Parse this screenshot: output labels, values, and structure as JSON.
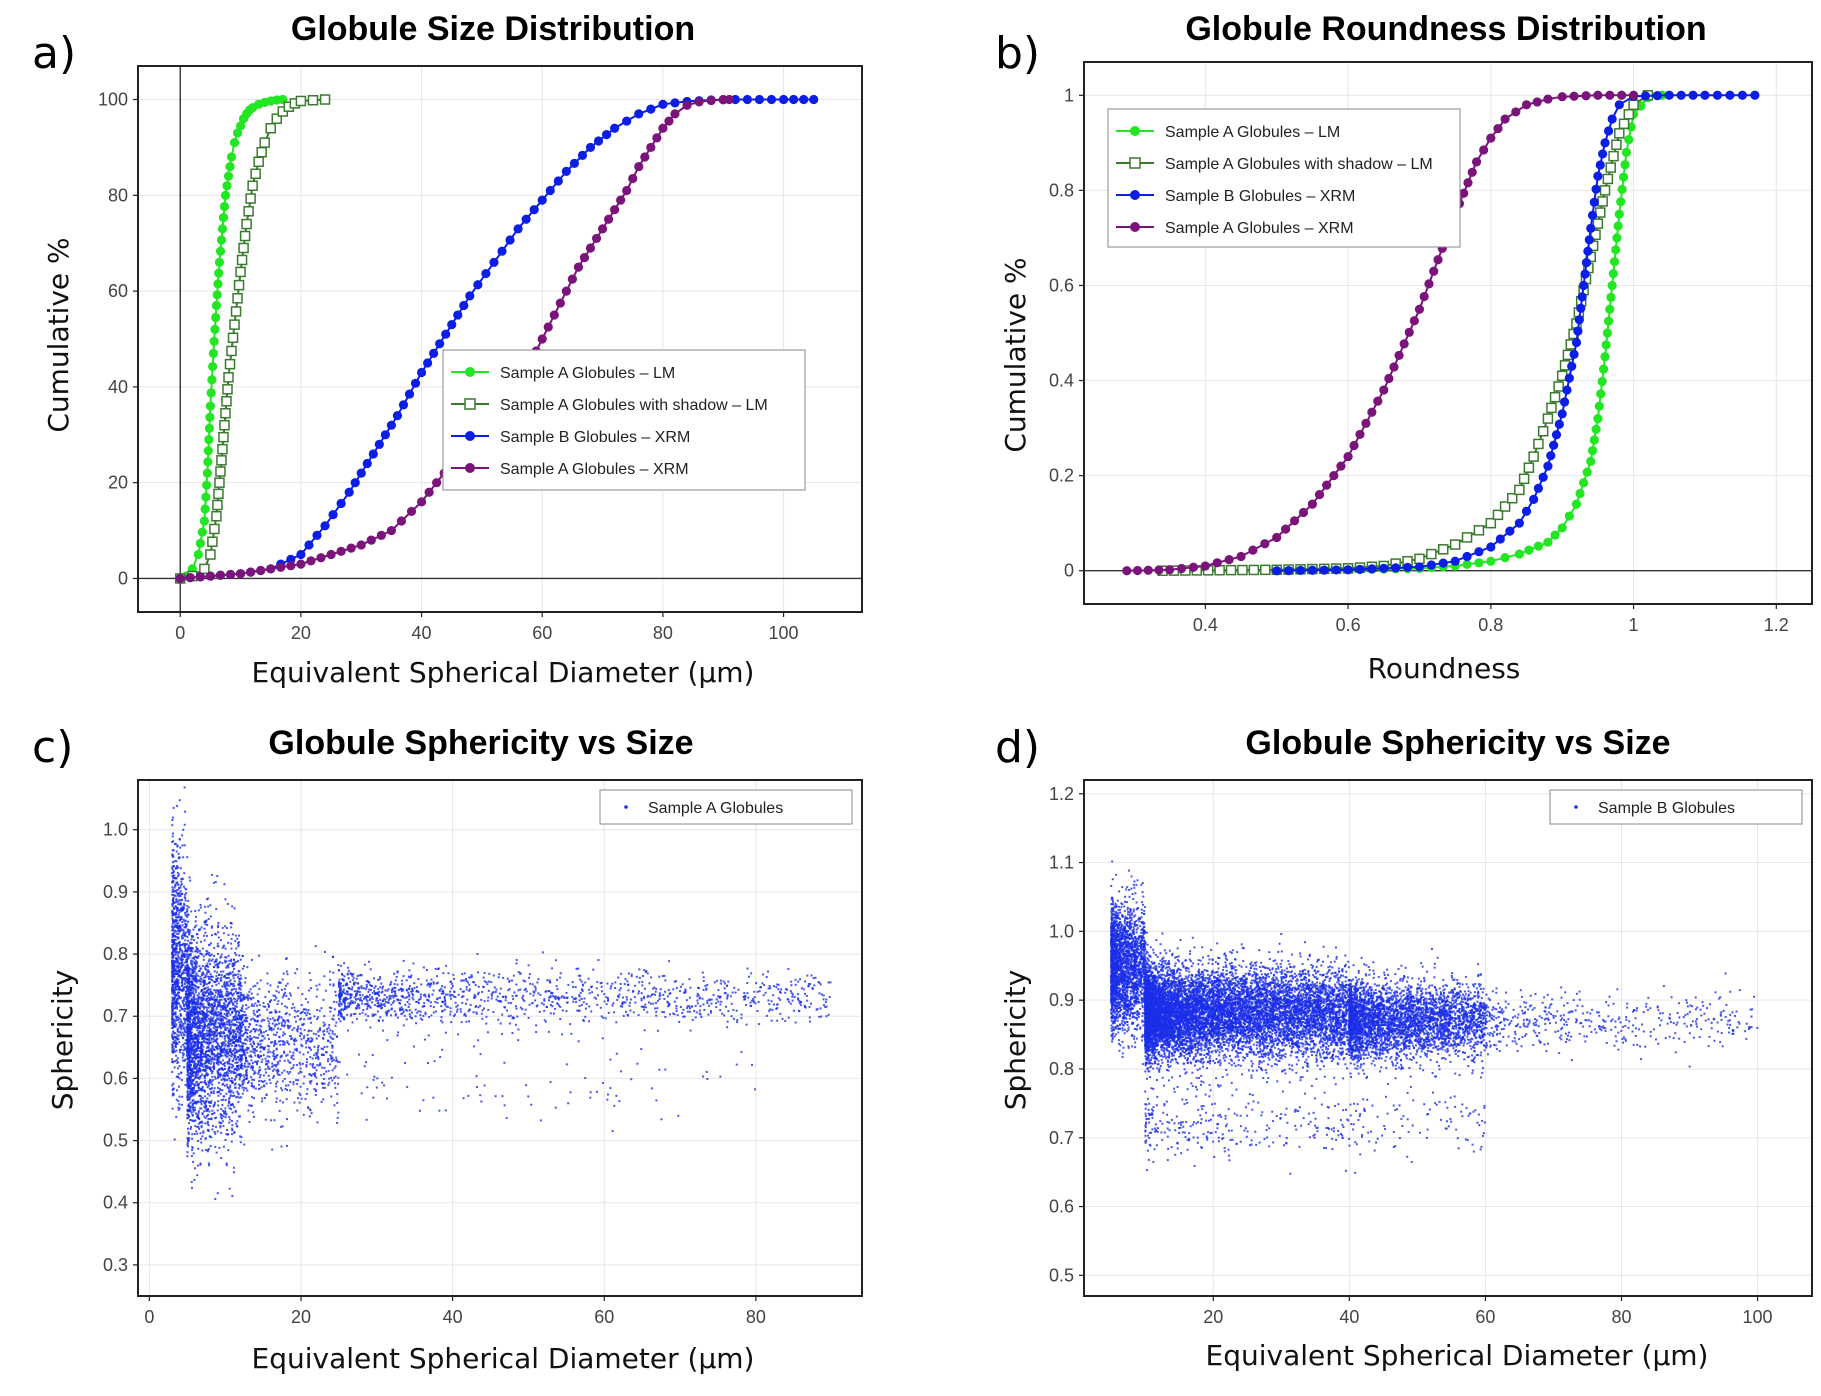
{
  "figure": {
    "panels": [
      {
        "label": "a)",
        "title": "Globule Size Distribution"
      },
      {
        "label": "b)",
        "title": "Globule Roundness Distribution"
      },
      {
        "label": "c)",
        "title": "Globule Sphericity vs Size"
      },
      {
        "label": "d)",
        "title": "Globule Sphericity vs Size"
      }
    ]
  },
  "colors": {
    "bright_green": "#22e622",
    "dark_green": "#3a7a2e",
    "blue": "#0a1ee6",
    "purple": "#7a137a",
    "scatter_blue": "#1a2ee8",
    "grid": "#e6e6e6"
  },
  "chart_data": [
    {
      "type": "line",
      "title": "Globule Size Distribution",
      "xlabel": "Equivalent Spherical Diameter (μm)",
      "ylabel": "Cumulative %",
      "xlim": [
        -7,
        113
      ],
      "ylim": [
        -7,
        107
      ],
      "xticks": [
        0,
        20,
        40,
        60,
        80,
        100
      ],
      "yticks": [
        0,
        20,
        40,
        60,
        80,
        100
      ],
      "grid": true,
      "legend_position": "center-right",
      "series": [
        {
          "name": "Sample A Globules – LM",
          "marker": "filled-circle",
          "color": "#22e622",
          "x": [
            0,
            1,
            2,
            3,
            4,
            4.5,
            5,
            5.5,
            6,
            6.5,
            7,
            7.5,
            8,
            8.5,
            9,
            9.5,
            10,
            10.5,
            11,
            11.5,
            12,
            13,
            14,
            15,
            16,
            17
          ],
          "y": [
            0,
            0.5,
            2,
            5,
            12,
            22,
            36,
            47,
            57,
            66,
            73,
            80,
            84,
            88,
            91,
            93,
            94.5,
            96,
            97,
            97.8,
            98.3,
            99,
            99.4,
            99.7,
            99.9,
            100
          ]
        },
        {
          "name": "Sample A Globules with shadow – LM",
          "marker": "open-square",
          "color": "#3a7a2e",
          "x": [
            0,
            2,
            4,
            5,
            6,
            7,
            8,
            9,
            10,
            11,
            12,
            13,
            14,
            15,
            16,
            17,
            18,
            19,
            20,
            24
          ],
          "y": [
            0,
            0.5,
            2,
            5,
            13,
            27,
            42,
            53,
            64,
            74,
            82,
            87,
            91,
            94,
            96,
            97.5,
            98.5,
            99.2,
            99.7,
            100
          ]
        },
        {
          "name": "Sample B Globules – XRM",
          "marker": "filled-circle",
          "color": "#0a1ee6",
          "x": [
            0,
            5,
            10,
            15,
            20,
            24,
            28,
            32,
            36,
            40,
            44,
            48,
            52,
            56,
            60,
            64,
            68,
            72,
            76,
            80,
            84,
            88,
            92,
            96,
            100,
            105
          ],
          "y": [
            0,
            0.5,
            1,
            2,
            5,
            11,
            18,
            26,
            34,
            43,
            51,
            59,
            66,
            73,
            79,
            85,
            90,
            94,
            97,
            99,
            99.6,
            99.9,
            100,
            100,
            100,
            100
          ]
        },
        {
          "name": "Sample A Globules – XRM",
          "marker": "filled-circle",
          "color": "#7a137a",
          "x": [
            0,
            5,
            10,
            15,
            20,
            25,
            30,
            35,
            40,
            45,
            50,
            55,
            58,
            60,
            62,
            64,
            66,
            68,
            70,
            72,
            74,
            76,
            78,
            80,
            82,
            84,
            86,
            88,
            90,
            91
          ],
          "y": [
            0,
            0.5,
            1,
            2,
            3,
            5,
            7,
            10,
            16,
            24,
            32,
            41,
            45,
            50,
            55,
            60,
            65,
            69,
            73,
            77,
            81,
            86,
            90,
            94,
            97,
            98.8,
            99.5,
            99.8,
            100,
            100
          ]
        }
      ]
    },
    {
      "type": "line",
      "title": "Globule Roundness Distribution",
      "xlabel": "Roundness",
      "ylabel": "Cumulative %",
      "xlim": [
        0.23,
        1.25
      ],
      "ylim": [
        -0.07,
        1.07
      ],
      "xticks": [
        0.4,
        0.6,
        0.8,
        1,
        1.2
      ],
      "yticks": [
        0,
        0.2,
        0.4,
        0.6,
        0.8,
        1
      ],
      "grid": true,
      "legend_position": "top-left",
      "series": [
        {
          "name": "Sample A Globules – LM",
          "marker": "filled-circle",
          "color": "#22e622",
          "x": [
            0.5,
            0.6,
            0.7,
            0.75,
            0.8,
            0.84,
            0.88,
            0.9,
            0.92,
            0.94,
            0.95,
            0.96,
            0.97,
            0.98,
            0.99,
            1.0,
            1.02,
            1.04
          ],
          "y": [
            0,
            0.002,
            0.005,
            0.01,
            0.02,
            0.035,
            0.06,
            0.09,
            0.14,
            0.23,
            0.32,
            0.45,
            0.6,
            0.75,
            0.88,
            0.96,
            0.995,
            1.0
          ]
        },
        {
          "name": "Sample A Globules with shadow – LM",
          "marker": "open-square",
          "color": "#3a7a2e",
          "x": [
            0.34,
            0.5,
            0.6,
            0.65,
            0.7,
            0.75,
            0.8,
            0.84,
            0.86,
            0.88,
            0.9,
            0.92,
            0.94,
            0.96,
            0.98,
            1.0,
            1.02
          ],
          "y": [
            0,
            0.002,
            0.005,
            0.01,
            0.025,
            0.055,
            0.1,
            0.17,
            0.24,
            0.32,
            0.41,
            0.52,
            0.66,
            0.8,
            0.92,
            0.98,
            1.0
          ]
        },
        {
          "name": "Sample B Globules – XRM",
          "marker": "filled-circle",
          "color": "#0a1ee6",
          "x": [
            0.5,
            0.6,
            0.7,
            0.75,
            0.8,
            0.84,
            0.86,
            0.88,
            0.9,
            0.92,
            0.93,
            0.94,
            0.95,
            0.96,
            0.97,
            0.98,
            1.0,
            1.05,
            1.1,
            1.17
          ],
          "y": [
            0,
            0.002,
            0.008,
            0.02,
            0.05,
            0.1,
            0.15,
            0.22,
            0.33,
            0.48,
            0.6,
            0.72,
            0.83,
            0.9,
            0.95,
            0.98,
            0.998,
            1.0,
            1.0,
            1.0
          ]
        },
        {
          "name": "Sample A Globules – XRM",
          "marker": "filled-circle",
          "color": "#7a137a",
          "x": [
            0.29,
            0.35,
            0.4,
            0.45,
            0.5,
            0.55,
            0.6,
            0.65,
            0.7,
            0.72,
            0.75,
            0.78,
            0.8,
            0.82,
            0.85,
            0.88,
            0.9,
            0.95,
            1.0
          ],
          "y": [
            0,
            0.002,
            0.01,
            0.03,
            0.07,
            0.14,
            0.24,
            0.38,
            0.55,
            0.63,
            0.75,
            0.86,
            0.91,
            0.95,
            0.98,
            0.992,
            0.997,
            1.0,
            1.0
          ]
        }
      ]
    },
    {
      "type": "scatter",
      "title": "Globule Sphericity vs Size",
      "xlabel": "Equivalent Spherical Diameter (μm)",
      "ylabel": "Sphericity",
      "xlim": [
        -1.5,
        94
      ],
      "ylim": [
        0.25,
        1.08
      ],
      "xticks": [
        0,
        20,
        40,
        60,
        80
      ],
      "yticks": [
        0.3,
        0.4,
        0.5,
        0.6,
        0.7,
        0.8,
        0.9,
        1.0
      ],
      "grid": true,
      "legend_position": "top-right",
      "series": [
        {
          "name": "Sample A Globules",
          "color": "#1a2ee8",
          "clusters": [
            {
              "x_range": [
                3,
                5
              ],
              "y_center": 0.78,
              "y_spread": 0.17,
              "count": 900
            },
            {
              "x_range": [
                5,
                12
              ],
              "y_center": 0.67,
              "y_spread": 0.15,
              "count": 2600
            },
            {
              "x_range": [
                12,
                25
              ],
              "y_center": 0.66,
              "y_spread": 0.1,
              "count": 900
            },
            {
              "x_range": [
                25,
                90
              ],
              "y_center": 0.73,
              "y_spread": 0.04,
              "count": 1300
            },
            {
              "x_range": [
                20,
                80
              ],
              "y_center": 0.6,
              "y_spread": 0.07,
              "count": 120
            }
          ]
        }
      ]
    },
    {
      "type": "scatter",
      "title": "Globule Sphericity vs Size",
      "xlabel": "Equivalent Spherical Diameter (μm)",
      "ylabel": "Sphericity",
      "xlim": [
        1,
        108
      ],
      "ylim": [
        0.47,
        1.22
      ],
      "xticks": [
        20,
        40,
        60,
        80,
        100
      ],
      "yticks": [
        0.5,
        0.6,
        0.7,
        0.8,
        0.9,
        1.0,
        1.1,
        1.2
      ],
      "grid": true,
      "legend_position": "top-right",
      "series": [
        {
          "name": "Sample B Globules",
          "color": "#1a2ee8",
          "clusters": [
            {
              "x_range": [
                5,
                10
              ],
              "y_center": 0.95,
              "y_spread": 0.08,
              "count": 2200
            },
            {
              "x_range": [
                10,
                40
              ],
              "y_center": 0.88,
              "y_spread": 0.06,
              "count": 9000
            },
            {
              "x_range": [
                40,
                60
              ],
              "y_center": 0.87,
              "y_spread": 0.05,
              "count": 3500
            },
            {
              "x_range": [
                60,
                100
              ],
              "y_center": 0.87,
              "y_spread": 0.04,
              "count": 450
            },
            {
              "x_range": [
                10,
                60
              ],
              "y_center": 0.72,
              "y_spread": 0.05,
              "count": 400
            }
          ]
        }
      ]
    }
  ]
}
